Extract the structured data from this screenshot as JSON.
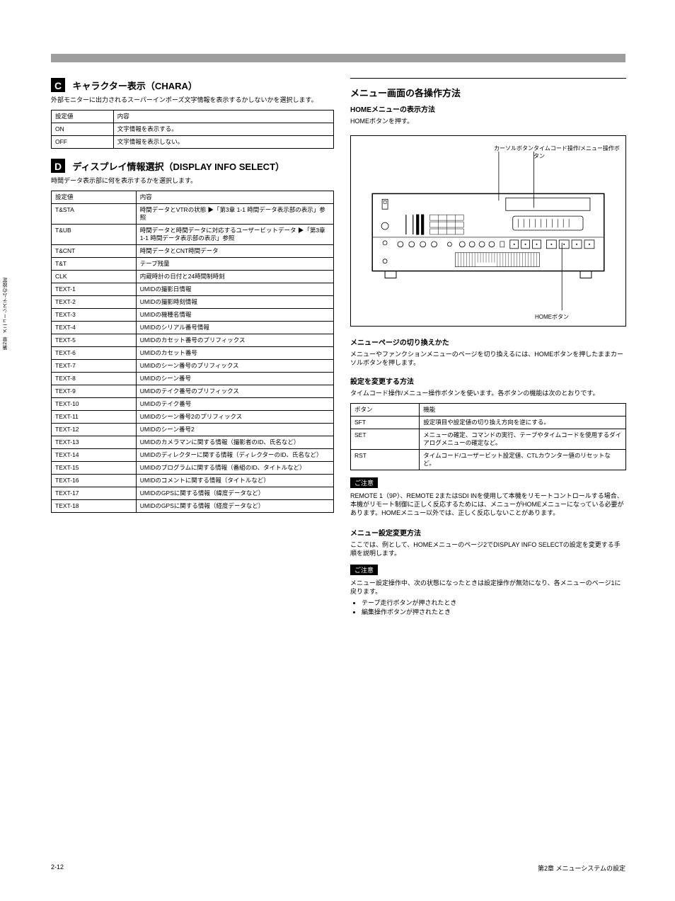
{
  "side_tab": "第2章  メニューシステムの設定",
  "section_c": {
    "badge": "C",
    "title": "キャラクター表示（CHARA）",
    "desc": "外部モニターに出力されるスーパーインポーズ文字情報を表示するかしないかを選択します。",
    "table": {
      "columns": [
        "設定値",
        "内容"
      ],
      "rows": [
        [
          "ON",
          "文字情報を表示する。"
        ],
        [
          "OFF",
          "文字情報を表示しない。"
        ]
      ]
    }
  },
  "section_d": {
    "badge": "D",
    "title": "ディスプレイ情報選択（DISPLAY INFO SELECT）",
    "desc": "時間データ表示部に何を表示するかを選択します。",
    "table": {
      "columns": [
        "設定値",
        "内容"
      ],
      "rows": [
        [
          "T&STA",
          "時間データとVTRの状態 ▶「第3章 1-1 時間データ表示部の表示」参照"
        ],
        [
          "T&UB",
          "時間データと時間データに対応するユーザービットデータ ▶「第3章 1-1 時間データ表示部の表示」参照"
        ],
        [
          "T&CNT",
          "時間データとCNT時間データ"
        ],
        [
          "T&T",
          "テープ残量"
        ],
        [
          "CLK",
          "内蔵時計の日付と24時間制時刻"
        ],
        [
          "TEXT-1",
          "UMIDの撮影日情報"
        ],
        [
          "TEXT-2",
          "UMIDの撮影時刻情報"
        ],
        [
          "TEXT-3",
          "UMIDの機種名情報"
        ],
        [
          "TEXT-4",
          "UMIDのシリアル番号情報"
        ],
        [
          "TEXT-5",
          "UMIDのカセット番号のプリフィックス"
        ],
        [
          "TEXT-6",
          "UMIDのカセット番号"
        ],
        [
          "TEXT-7",
          "UMIDのシーン番号のプリフィックス"
        ],
        [
          "TEXT-8",
          "UMIDのシーン番号"
        ],
        [
          "TEXT-9",
          "UMIDのテイク番号のプリフィックス"
        ],
        [
          "TEXT-10",
          "UMIDのテイク番号"
        ],
        [
          "TEXT-11",
          "UMIDのシーン番号2のプリフィックス"
        ],
        [
          "TEXT-12",
          "UMIDのシーン番号2"
        ],
        [
          "TEXT-13",
          "UMIDのカメラマンに関する情報（撮影者のID、氏名など）"
        ],
        [
          "TEXT-14",
          "UMIDのディレクターに関する情報（ディレクターのID、氏名など）"
        ],
        [
          "TEXT-15",
          "UMIDのプログラムに関する情報（番組のID、タイトルなど）"
        ],
        [
          "TEXT-16",
          "UMIDのコメントに関する情報（タイトルなど）"
        ],
        [
          "TEXT-17",
          "UMIDのGPSに関する情報（緯度データなど）"
        ],
        [
          "TEXT-18",
          "UMIDのGPSに関する情報（経度データなど）"
        ]
      ]
    }
  },
  "right": {
    "heading1": "メニュー画面の各操作方法",
    "sub1": "HOMEメニューの表示方法",
    "body1": "HOMEボタンを押す。",
    "figure": {
      "callout_top": "カーソルボタン",
      "callout_mid": "タイムコード操作/メニュー操作ボタン",
      "callout_bot": "HOMEボタン"
    },
    "sub2": "メニューページの切り換えかた",
    "body2": "メニューやファンクションメニューのページを切り換えるには、HOMEボタンを押したままカーソルボタンを押します。",
    "sub3": "設定を変更する方法",
    "body3": "タイムコード操作/メニュー操作ボタンを使います。各ボタンの機能は次のとおりです。",
    "btn_table": {
      "columns": [
        "ボタン",
        "機能"
      ],
      "rows": [
        [
          "SFT",
          "設定項目や設定値の切り換え方向を逆にする。"
        ],
        [
          "SET",
          "メニューの確定、コマンドの実行、テープやタイムコードを使用するダイアログメニューの確定など。"
        ],
        [
          "RST",
          "タイムコード/ユーザービット設定値、CTLカウンター値のリセットなど。"
        ]
      ]
    },
    "note1_label": "ご注意",
    "note1_body": "REMOTE 1（9P）、REMOTE 2またはSDI INを使用して本機をリモートコントロールする場合、本機がリモート制御に正しく反応するためには、メニューがHOMEメニューになっている必要があります。HOMEメニュー以外では、正しく反応しないことがあります。",
    "sub4": "メニュー設定変更方法",
    "body4": "ここでは、例として、HOMEメニューのページ2でDISPLAY INFO SELECTの設定を変更する手順を説明します。",
    "note2_label": "ご注意",
    "note2_body": "メニュー設定操作中、次の状態になったときは設定操作が無効になり、各メニューのページ1に戻ります。",
    "bullets": [
      "テープ走行ボタンが押されたとき",
      "編集操作ボタンが押されたとき"
    ]
  },
  "footer": {
    "page": "2-12",
    "chapter": "第2章  メニューシステムの設定"
  },
  "colors": {
    "bg": "#ffffff",
    "text": "#000000",
    "bar": "#9e9e9e",
    "border": "#000000"
  }
}
